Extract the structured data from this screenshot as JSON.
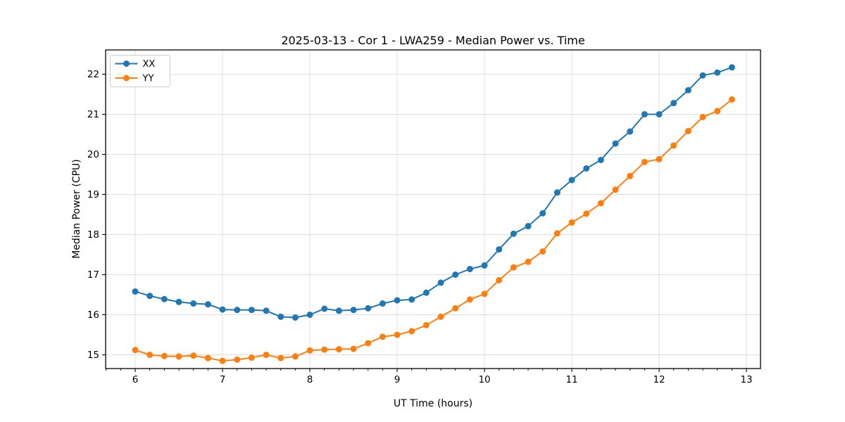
{
  "chart_data": {
    "type": "line",
    "title": "2025-03-13 - Cor 1 - LWA259 - Median Power vs. Time",
    "xlabel": "UT Time (hours)",
    "ylabel": "Median Power (CPU)",
    "xlim": [
      5.661,
      13.161
    ],
    "ylim": [
      14.658,
      22.605
    ],
    "x_major_ticks": [
      6,
      7,
      8,
      9,
      10,
      11,
      12,
      13
    ],
    "x_minor_step": 0.166667,
    "y_major_ticks": [
      15,
      16,
      17,
      18,
      19,
      20,
      21,
      22
    ],
    "grid": true,
    "grid_color": "#dcdcdc",
    "spine_color": "#000000",
    "legend_position": "upper-left",
    "x": [
      6.0,
      6.1667,
      6.3333,
      6.5,
      6.6667,
      6.8333,
      7.0,
      7.1667,
      7.3333,
      7.5,
      7.6667,
      7.8333,
      8.0,
      8.1667,
      8.3333,
      8.5,
      8.6667,
      8.8333,
      9.0,
      9.1667,
      9.3333,
      9.5,
      9.6667,
      9.8333,
      10.0,
      10.1667,
      10.3333,
      10.5,
      10.6667,
      10.8333,
      11.0,
      11.1667,
      11.3333,
      11.5,
      11.6667,
      11.8333,
      12.0,
      12.1667,
      12.3333,
      12.5,
      12.6667,
      12.8333
    ],
    "series": [
      {
        "name": "XX",
        "color": "#1f77b4",
        "values": [
          16.58,
          16.47,
          16.39,
          16.32,
          16.28,
          16.26,
          16.13,
          16.12,
          16.12,
          16.1,
          15.95,
          15.93,
          16.0,
          16.15,
          16.1,
          16.12,
          16.16,
          16.28,
          16.36,
          16.38,
          16.55,
          16.8,
          17.0,
          17.14,
          17.23,
          17.63,
          18.02,
          18.21,
          18.53,
          19.05,
          19.36,
          19.65,
          19.86,
          20.27,
          20.57,
          21.0,
          21.0,
          21.28,
          21.6,
          21.97,
          22.04,
          22.17
        ]
      },
      {
        "name": "YY",
        "color": "#ff7f0e",
        "values": [
          15.12,
          15.0,
          14.97,
          14.96,
          14.98,
          14.92,
          14.85,
          14.88,
          14.93,
          15.0,
          14.92,
          14.96,
          15.11,
          15.13,
          15.14,
          15.15,
          15.29,
          15.45,
          15.5,
          15.59,
          15.74,
          15.95,
          16.16,
          16.38,
          16.52,
          16.86,
          17.18,
          17.32,
          17.58,
          18.03,
          18.3,
          18.52,
          18.78,
          19.12,
          19.46,
          19.81,
          19.88,
          20.22,
          20.58,
          20.93,
          21.08,
          21.37
        ]
      }
    ]
  },
  "layout_labels": {
    "legend_items": [
      "XX",
      "YY"
    ]
  }
}
